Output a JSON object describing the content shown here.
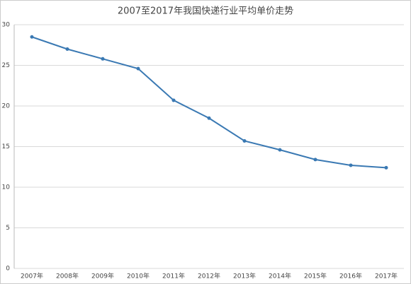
{
  "chart_data": {
    "type": "line",
    "title": "2007至2017年我国快递行业平均单价走势",
    "categories": [
      "2007年",
      "2008年",
      "2009年",
      "2010年",
      "2011年",
      "2012年",
      "2013年",
      "2014年",
      "2015年",
      "2016年",
      "2017年"
    ],
    "series": [
      {
        "color": "#3a79b3",
        "values": [
          28.5,
          27.0,
          25.8,
          24.6,
          20.7,
          18.5,
          15.7,
          14.6,
          13.4,
          12.7,
          12.4
        ]
      }
    ],
    "ylim": [
      0,
      30
    ],
    "yticks": [
      0,
      5,
      10,
      15,
      20,
      25,
      30
    ],
    "grid": true
  }
}
